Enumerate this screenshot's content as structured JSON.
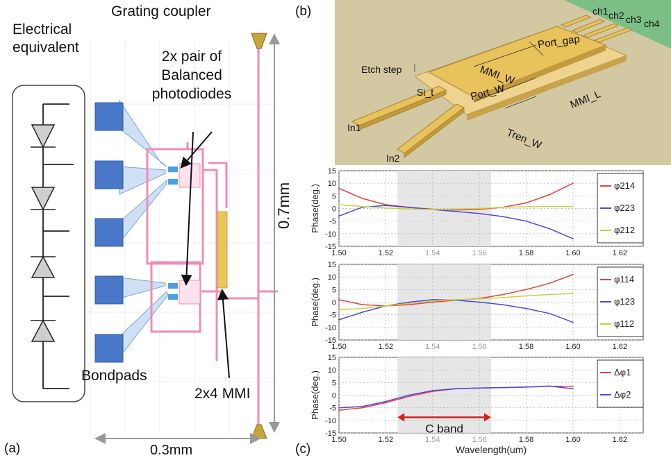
{
  "panel_a": {
    "label": "(a)",
    "electrical_title_line1": "Electrical",
    "electrical_title_line2": "equivalent",
    "grating_coupler": "Grating coupler",
    "balanced_line1": "2x pair of",
    "balanced_line2": "Balanced",
    "balanced_line3": "photodiodes",
    "bondpads": "Bondpads",
    "mmi": "2x4 MMI",
    "dim_vertical": "0.7mm",
    "dim_horizontal": "0.3mm"
  },
  "panel_b": {
    "label": "(b)",
    "ch1": "ch1",
    "ch2": "ch2",
    "ch3": "ch3",
    "ch4": "ch4",
    "port_gap": "Port_gap",
    "etch_step": "Etch step",
    "mmi_w": "MMI_W",
    "si_t": "Si_t",
    "port_w": "Port_W",
    "mmi_l": "MMI_L",
    "in1": "In1",
    "in2": "In2",
    "tren_w": "Tren_W"
  },
  "panel_c": {
    "label": "(c)",
    "xlabel": "Wavelength(um)",
    "c_band_label": "C band",
    "band": [
      1.525,
      1.565
    ]
  },
  "colors": {
    "red": "#e8413c",
    "blue": "#4a4ae8",
    "yellow": "#c8d23c",
    "pink": "#f08cb4",
    "pad_blue": "#4a78c8",
    "band_shade": "#e6e6e6"
  },
  "chart_data": [
    {
      "type": "line",
      "xlabel": "",
      "ylabel": "Phase(deg.)",
      "xlim": [
        1.5,
        1.63
      ],
      "ylim": [
        -15,
        15
      ],
      "xticks": [
        1.5,
        1.52,
        1.54,
        1.56,
        1.58,
        1.6,
        1.62
      ],
      "yticks": [
        15,
        10,
        5,
        0,
        -5,
        -10,
        -15
      ],
      "legend": "right",
      "series": [
        {
          "name": "φ214",
          "color": "red",
          "x": [
            1.5,
            1.51,
            1.52,
            1.53,
            1.54,
            1.55,
            1.56,
            1.57,
            1.58,
            1.59,
            1.6
          ],
          "y": [
            8,
            4,
            1.5,
            0.5,
            -0.3,
            -0.6,
            -0.3,
            0.5,
            2.2,
            5.5,
            10
          ]
        },
        {
          "name": "φ223",
          "color": "blue",
          "x": [
            1.5,
            1.51,
            1.52,
            1.53,
            1.54,
            1.55,
            1.56,
            1.57,
            1.58,
            1.59,
            1.6
          ],
          "y": [
            -3,
            0.5,
            1.2,
            0.4,
            -0.4,
            -1.2,
            -2,
            -3.2,
            -5,
            -8,
            -12
          ]
        },
        {
          "name": "φ212",
          "color": "yellow",
          "x": [
            1.5,
            1.51,
            1.52,
            1.53,
            1.54,
            1.55,
            1.56,
            1.57,
            1.58,
            1.59,
            1.6
          ],
          "y": [
            1.5,
            0.8,
            0.2,
            -0.2,
            -0.4,
            -0.3,
            0,
            0.5,
            0.7,
            0.8,
            0.8
          ]
        }
      ]
    },
    {
      "type": "line",
      "xlabel": "",
      "ylabel": "Phase(deg.)",
      "xlim": [
        1.5,
        1.63
      ],
      "ylim": [
        -15,
        15
      ],
      "xticks": [
        1.5,
        1.52,
        1.54,
        1.56,
        1.58,
        1.6,
        1.62
      ],
      "yticks": [
        15,
        10,
        5,
        0,
        -5,
        -10,
        -15
      ],
      "legend": "right",
      "series": [
        {
          "name": "φ114",
          "color": "red",
          "x": [
            1.5,
            1.51,
            1.52,
            1.53,
            1.54,
            1.55,
            1.56,
            1.57,
            1.58,
            1.59,
            1.6
          ],
          "y": [
            1,
            -1,
            -1.5,
            -1,
            0,
            0.8,
            1.5,
            3,
            5,
            7.5,
            11
          ]
        },
        {
          "name": "φ123",
          "color": "blue",
          "x": [
            1.5,
            1.51,
            1.52,
            1.53,
            1.54,
            1.55,
            1.56,
            1.57,
            1.58,
            1.59,
            1.6
          ],
          "y": [
            -7,
            -4,
            -1.5,
            0,
            1,
            0.8,
            0,
            -1,
            -2.5,
            -4.5,
            -8
          ]
        },
        {
          "name": "φ112",
          "color": "yellow",
          "x": [
            1.5,
            1.51,
            1.52,
            1.53,
            1.54,
            1.55,
            1.56,
            1.57,
            1.58,
            1.59,
            1.6
          ],
          "y": [
            -3,
            -2.5,
            -1.5,
            -0.5,
            0.5,
            1,
            1.3,
            1.8,
            2.5,
            3,
            3.5
          ]
        }
      ]
    },
    {
      "type": "line",
      "xlabel": "Wavelength(um)",
      "ylabel": "Phase(deg.)",
      "xlim": [
        1.5,
        1.63
      ],
      "ylim": [
        -15,
        15
      ],
      "xticks": [
        1.5,
        1.52,
        1.54,
        1.56,
        1.58,
        1.6,
        1.62
      ],
      "yticks": [
        15,
        10,
        5,
        0,
        -5,
        -10,
        -15
      ],
      "legend": "right",
      "series": [
        {
          "name": "Δφ1",
          "color": "red",
          "x": [
            1.5,
            1.51,
            1.52,
            1.53,
            1.54,
            1.55,
            1.56,
            1.57,
            1.58,
            1.59,
            1.6
          ],
          "y": [
            -6,
            -5,
            -3,
            -0.5,
            1.5,
            2.5,
            2.8,
            3,
            3.2,
            3.5,
            3.5
          ]
        },
        {
          "name": "Δφ2",
          "color": "blue",
          "x": [
            1.5,
            1.51,
            1.52,
            1.53,
            1.54,
            1.55,
            1.56,
            1.57,
            1.58,
            1.59,
            1.6
          ],
          "y": [
            -5,
            -4.5,
            -2.5,
            0,
            1.8,
            2.6,
            2.8,
            3,
            3.2,
            3.6,
            2.5
          ]
        }
      ]
    }
  ]
}
